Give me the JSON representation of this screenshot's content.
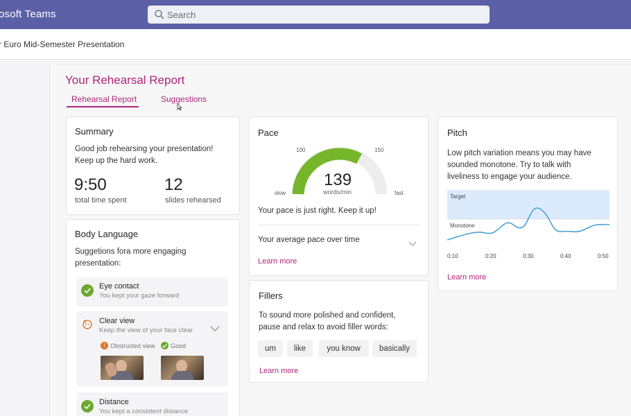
{
  "app": {
    "title": "osoft Teams"
  },
  "search": {
    "placeholder": "Search"
  },
  "meeting": {
    "title": "r Euro Mid-Semester Presentation"
  },
  "report": {
    "title": "Your Rehearsal Report",
    "tabs": [
      {
        "label": "Rehearsal Report",
        "active": true
      },
      {
        "label": "Suggestions",
        "active": false
      }
    ]
  },
  "summary": {
    "title": "Summary",
    "message_line1": "Good job rehearsing your presentation!",
    "message_line2": "Keep up the hard work.",
    "time_value": "9:50",
    "time_label": "total time spent",
    "slides_value": "12",
    "slides_label": "slides rehearsed"
  },
  "body_language": {
    "title": "Body Language",
    "intro_line1": "Suggetions fora more engaging",
    "intro_line2": "presentation:",
    "items": [
      {
        "title": "Eye contact",
        "desc": "You kept your gaze forward",
        "icon": "check-icon"
      },
      {
        "title": "Clear view",
        "desc": "Keep the view of your face clear",
        "icon": "face-icon",
        "obstructed_label": "Obstructed view",
        "good_label": "Good"
      },
      {
        "title": "Distance",
        "desc": "You kept a consistent distance",
        "icon": "check-icon"
      }
    ]
  },
  "pace": {
    "title": "Pace",
    "value": "139",
    "unit": "words/min",
    "gauge": {
      "min_label": "slow",
      "max_label": "fast",
      "low_mark": "100",
      "high_mark": "150",
      "value": 139
    },
    "message": "Your pace is just right. Keep it up!",
    "over_time_label": "Your average pace over time",
    "learn_more": "Learn more"
  },
  "fillers": {
    "title": "Fillers",
    "line1": "To sound more polished and confident,",
    "line2": "pause and relax to avoid filler words:",
    "words": [
      "um",
      "like",
      "you know",
      "basically"
    ],
    "learn_more": "Learn more"
  },
  "pitch": {
    "title": "Pitch",
    "line1": "Low pitch variation means you may have",
    "line2": "sounded monotone. Try to talk with",
    "line3": "liveliness to engage your audience.",
    "band_target_label": "Target",
    "band_monotone_label": "Monotone",
    "x_ticks": [
      "0:10",
      "0:20",
      "0:30",
      "0:40",
      "0:50"
    ],
    "learn_more": "Learn more"
  },
  "colors": {
    "brand": "#5b5fa6",
    "accent": "#b0247a",
    "success": "#6ea830",
    "chart_line": "#4a9fd8",
    "target_band": "#dcebfb",
    "warning": "#e0772a"
  }
}
